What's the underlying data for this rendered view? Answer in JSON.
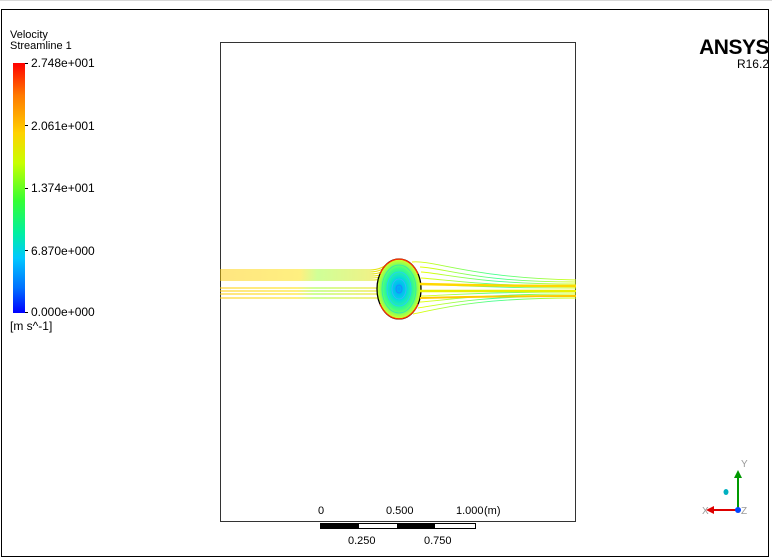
{
  "legend": {
    "title": "Velocity",
    "subtitle": "Streamline 1",
    "ticks": [
      "2.748e+001",
      "2.061e+001",
      "1.374e+001",
      "6.870e+000",
      "0.000e+000"
    ],
    "units": "[m s^-1]",
    "colors": [
      "#ff0000",
      "#ffd200",
      "#36ff33",
      "#00c8ff",
      "#0000ff"
    ]
  },
  "brand": {
    "name": "ANSYS",
    "version": "R16.2"
  },
  "scale": {
    "top_labels": [
      "0",
      "0.500",
      "1.000"
    ],
    "unit": "(m)",
    "bottom_labels": [
      "0.250",
      "0.750"
    ]
  },
  "axes": {
    "y": "Y",
    "x": "X",
    "z": "Z"
  }
}
